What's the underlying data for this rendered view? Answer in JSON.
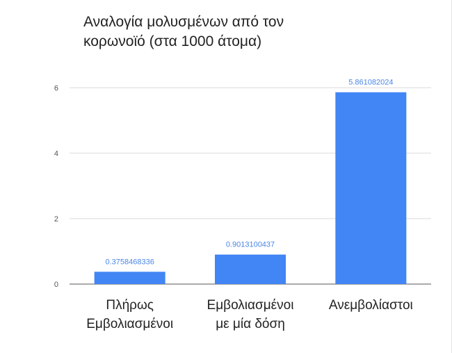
{
  "chart_data": {
    "type": "bar",
    "title": "Αναλογία μολυσμένων από τον κορωνοϊό (στα 1000 άτομα)",
    "categories": [
      [
        "Πλήρως",
        "Εμβολιασμένοι"
      ],
      [
        "Εμβολιασμένοι",
        "με μία δόση"
      ],
      [
        "Ανεμβολίαστοι"
      ]
    ],
    "values": [
      0.3758468336,
      0.9013100437,
      5.861082024
    ],
    "data_labels": [
      "0.3758468336",
      "0.9013100437",
      "5.861082024"
    ],
    "ylim": [
      0,
      6
    ],
    "yticks": [
      0,
      2,
      4,
      6
    ],
    "grid": true,
    "bar_color": "#4285f4",
    "label_color": "#4a86e8"
  }
}
